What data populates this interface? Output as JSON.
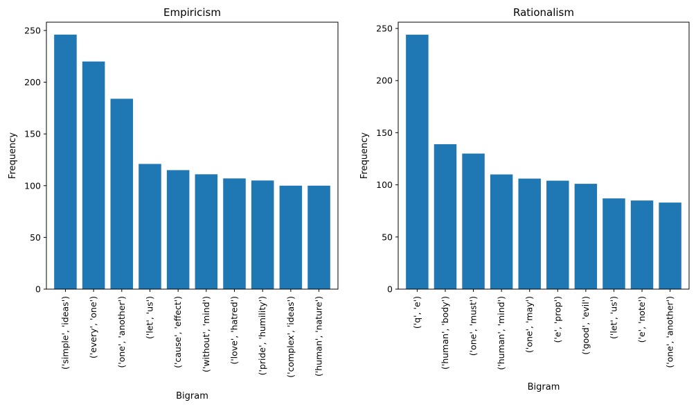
{
  "chart_data": [
    {
      "type": "bar",
      "title": "Empiricism",
      "xlabel": "Bigram",
      "ylabel": "Frequency",
      "categories": [
        "('simple', 'ideas')",
        "('every', 'one')",
        "('one', 'another')",
        "('let', 'us')",
        "('cause', 'effect')",
        "('without', 'mind')",
        "('love', 'hatred')",
        "('pride', 'humility')",
        "('complex', 'ideas')",
        "('human', 'nature')"
      ],
      "values": [
        246,
        220,
        184,
        121,
        115,
        111,
        107,
        105,
        100,
        100
      ],
      "ylim": [
        0,
        258
      ],
      "yticks": [
        0,
        50,
        100,
        150,
        200,
        250
      ],
      "grid": false,
      "color": "#1f77b4"
    },
    {
      "type": "bar",
      "title": "Rationalism",
      "xlabel": "Bigram",
      "ylabel": "Frequency",
      "categories": [
        "('q', 'e')",
        "('human', 'body')",
        "('one', 'must')",
        "('human', 'mind')",
        "('one', 'may')",
        "('e', 'prop')",
        "('good', 'evil')",
        "('let', 'us')",
        "('e', 'note')",
        "('one', 'another')"
      ],
      "values": [
        244,
        139,
        130,
        110,
        106,
        104,
        101,
        87,
        85,
        83
      ],
      "ylim": [
        0,
        256
      ],
      "yticks": [
        0,
        50,
        100,
        150,
        200,
        250
      ],
      "grid": false,
      "color": "#1f77b4"
    }
  ]
}
